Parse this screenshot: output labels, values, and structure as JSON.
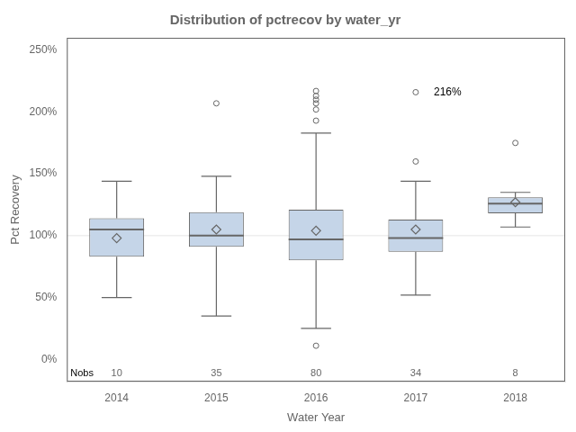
{
  "chart_data": {
    "type": "box",
    "title": "Distribution of pctrecov by water_yr",
    "x_label": "Water Year",
    "y_label": "Pct Recovery",
    "categories": [
      "2014",
      "2015",
      "2016",
      "2017",
      "2018"
    ],
    "boxes": [
      {
        "q1": 83,
        "median": 105,
        "q3": 114,
        "mean": 98,
        "whislo": 50,
        "whishi": 144,
        "fliers": []
      },
      {
        "q1": 91,
        "median": 100,
        "q3": 119,
        "mean": 105,
        "whislo": 35,
        "whishi": 148,
        "fliers": [
          207
        ]
      },
      {
        "q1": 80,
        "median": 97,
        "q3": 121,
        "mean": 104,
        "whislo": 25,
        "whishi": 183,
        "fliers": [
          11,
          193,
          202,
          207,
          210,
          213,
          217
        ]
      },
      {
        "q1": 87,
        "median": 98,
        "q3": 113,
        "mean": 105,
        "whislo": 52,
        "whishi": 144,
        "fliers": [
          160,
          216
        ]
      },
      {
        "q1": 118,
        "median": 126,
        "q3": 131,
        "mean": 127,
        "whislo": 107,
        "whishi": 135,
        "fliers": [
          175
        ]
      }
    ],
    "nobs_label": "Nobs",
    "nobs": [
      10,
      35,
      80,
      34,
      8
    ],
    "reference_line": 100,
    "annotations": [
      {
        "category": "2017",
        "value": 216,
        "label": "216%"
      }
    ],
    "color": "#c5d5e8",
    "ylim": [
      -18,
      260
    ],
    "yticks": [
      {
        "value": 0,
        "label": "0%"
      },
      {
        "value": 50,
        "label": "50%"
      },
      {
        "value": 100,
        "label": "100%"
      },
      {
        "value": 150,
        "label": "150%"
      },
      {
        "value": 200,
        "label": "200%"
      },
      {
        "value": 250,
        "label": "250%"
      }
    ],
    "grid": false
  }
}
